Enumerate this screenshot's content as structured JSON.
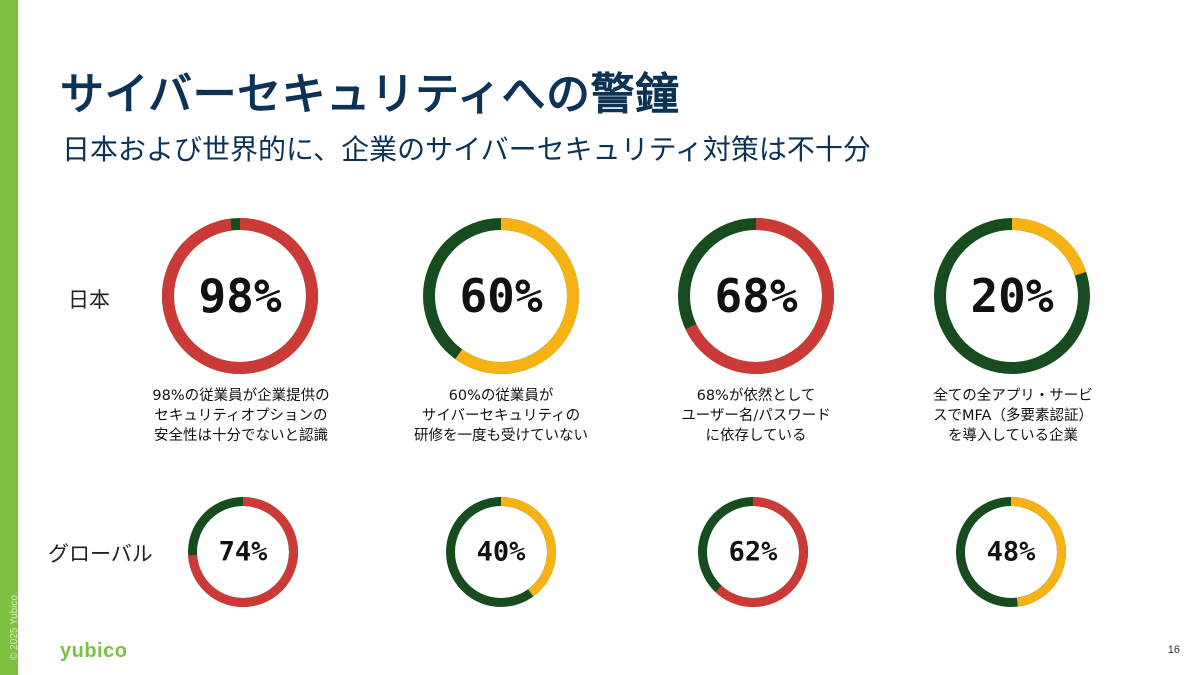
{
  "slide": {
    "title": "サイバーセキュリティへの警鐘",
    "subtitle": "日本および世界的に、企業のサイバーセキュリティ対策は不十分",
    "copyright": "© 2025 Yubico",
    "logo": "yubico",
    "page_number": "16"
  },
  "rows": {
    "japan_label": "日本",
    "global_label": "グローバル"
  },
  "colors": {
    "red": "#cb3a36",
    "dark_green": "#174c1f",
    "yellow": "#f7b214",
    "title_navy": "#0c3356",
    "brand_green": "#7cc142"
  },
  "japan": [
    {
      "label": "98%",
      "value": 98,
      "highlight": "red",
      "desc": [
        "98%の従業員が企業提供の",
        "セキュリティオプションの",
        "安全性は十分でないと認識"
      ]
    },
    {
      "label": "60%",
      "value": 60,
      "highlight": "yellow",
      "desc": [
        "60%の従業員が",
        "サイバーセキュリティの",
        "研修を一度も受けていない"
      ]
    },
    {
      "label": "68%",
      "value": 68,
      "highlight": "red",
      "desc": [
        "68%が依然として",
        "ユーザー名/パスワード",
        "に依存している"
      ]
    },
    {
      "label": "20%",
      "value": 20,
      "highlight": "yellow",
      "desc": [
        "全ての全アプリ・サービ",
        "スでMFA（多要素認証）",
        "を導入している企業"
      ]
    }
  ],
  "global": [
    {
      "label": "74%",
      "value": 74,
      "highlight": "red"
    },
    {
      "label": "40%",
      "value": 40,
      "highlight": "yellow"
    },
    {
      "label": "62%",
      "value": 62,
      "highlight": "red"
    },
    {
      "label": "48%",
      "value": 48,
      "highlight": "yellow"
    }
  ]
}
